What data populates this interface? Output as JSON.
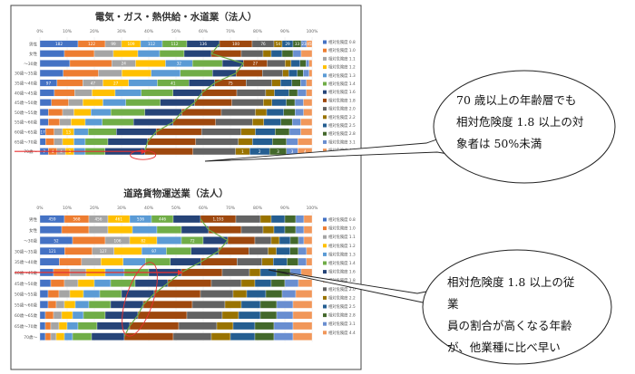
{
  "colors": {
    "c0.8": "#4472c4",
    "c1.0": "#ed7d31",
    "c1.1": "#a5a5a5",
    "c1.2": "#ffc000",
    "c1.3": "#5b9bd5",
    "c1.4": "#70ad47",
    "c1.6": "#264478",
    "c1.8": "#9e480e",
    "c2.0": "#636363",
    "c2.2": "#997300",
    "c2.5": "#255e91",
    "c2.8": "#43682b",
    "c3.1": "#698ed0",
    "c4.4": "#f1975a",
    "curve": "#70ad47",
    "pointer": "#e83030"
  },
  "callouts": [
    {
      "lines": [
        "70 歳以上の年齢層でも",
        "相対危険度 1.8 以上の対",
        "象者は 50%未満"
      ]
    },
    {
      "lines": [
        "相対危険度 1.8 以上の従業",
        "員の割合が高くなる年齢",
        "が、他業種に比べ早い"
      ]
    }
  ],
  "chart_data": [
    {
      "type": "bar",
      "stacked": "percent",
      "orientation": "horizontal",
      "title": "電気・ガス・熱供給・水道業（法人）",
      "x_ticks": [
        "0%",
        "10%",
        "20%",
        "30%",
        "40%",
        "50%",
        "60%",
        "70%",
        "80%",
        "90%",
        "100%"
      ],
      "categories": [
        "男性",
        "女性",
        "～30歳",
        "30歳～35歳",
        "35歳～40歳",
        "40歳～45歳",
        "45歳～50歳",
        "50歳～55歳",
        "55歳～60歳",
        "60歳～65歳",
        "65歳～70歳",
        "70歳～"
      ],
      "legend": [
        "相対危険度 0.8",
        "相対危険度 1.0",
        "相対危険度 1.1",
        "相対危険度 1.2",
        "相対危険度 1.3",
        "相対危険度 1.4",
        "相対危険度 1.6",
        "相対危険度 1.8",
        "相対危険度 2.0",
        "相対危険度 2.2",
        "相対危険度 2.5",
        "相対危険度 2.8",
        "相対危険度 3.1",
        "相対危険度 4.4"
      ],
      "series": [
        {
          "key": "c0.8",
          "values": [
            14,
            9,
            10,
            8,
            6,
            5,
            4,
            3,
            3,
            2,
            2,
            3
          ]
        },
        {
          "key": "c1.0",
          "values": [
            10,
            11,
            14,
            12,
            9,
            7,
            6,
            5,
            4,
            3,
            3,
            3
          ]
        },
        {
          "key": "c1.1",
          "values": [
            6,
            7,
            8,
            8,
            7,
            6,
            5,
            4,
            4,
            3,
            3,
            3
          ]
        },
        {
          "key": "c1.2",
          "values": [
            7,
            9,
            10,
            10,
            9,
            8,
            7,
            6,
            5,
            4,
            4,
            3
          ]
        },
        {
          "key": "c1.3",
          "values": [
            8,
            8,
            9,
            10,
            10,
            9,
            8,
            7,
            6,
            5,
            4,
            4
          ]
        },
        {
          "key": "c1.4",
          "values": [
            9,
            9,
            10,
            11,
            11,
            11,
            12,
            12,
            11,
            10,
            8,
            7
          ]
        },
        {
          "key": "c1.6",
          "values": [
            12,
            10,
            7,
            8,
            9,
            10,
            12,
            13,
            14,
            14,
            14,
            14
          ]
        },
        {
          "key": "c1.8",
          "values": [
            12,
            11,
            8,
            9,
            11,
            12,
            13,
            14,
            15,
            16,
            17,
            17
          ]
        },
        {
          "key": "c2.0",
          "values": [
            8,
            8,
            6,
            7,
            9,
            10,
            11,
            12,
            13,
            14,
            15,
            15
          ]
        },
        {
          "key": "c2.2",
          "values": [
            3,
            3,
            2,
            2,
            3,
            3,
            3,
            4,
            4,
            5,
            5,
            5
          ]
        },
        {
          "key": "c2.5",
          "values": [
            4,
            4,
            3,
            3,
            4,
            5,
            5,
            6,
            6,
            7,
            7,
            7
          ]
        },
        {
          "key": "c2.8",
          "values": [
            3,
            4,
            2,
            2,
            3,
            3,
            3,
            4,
            4,
            5,
            5,
            6
          ]
        },
        {
          "key": "c3.1",
          "values": [
            2,
            3,
            1,
            2,
            2,
            3,
            3,
            3,
            3,
            4,
            4,
            4
          ]
        },
        {
          "key": "c4.4",
          "values": [
            2,
            4,
            1,
            1,
            2,
            2,
            3,
            3,
            4,
            4,
            5,
            5
          ]
        }
      ],
      "labels": [
        [
          "182",
          "122",
          "99",
          "109",
          "112",
          "112",
          "136",
          "100",
          "76",
          "54",
          "29",
          "33",
          "23",
          "45"
        ],
        [
          "",
          "",
          "",
          "",
          "",
          "",
          "",
          "",
          "",
          "",
          "",
          "",
          "",
          ""
        ],
        [
          "",
          "",
          "24",
          "",
          "32",
          "",
          "",
          "27",
          "",
          "",
          "",
          "",
          "",
          ""
        ],
        [
          "",
          "",
          "",
          "",
          "",
          "",
          "",
          "",
          "",
          "",
          "",
          "",
          "",
          ""
        ],
        [
          "97",
          "",
          "47",
          "27",
          "",
          "41",
          "",
          "75",
          "",
          "",
          "",
          "",
          "",
          ""
        ],
        [
          "",
          "",
          "",
          "",
          "",
          "",
          "",
          "",
          "",
          "",
          "",
          "",
          "",
          ""
        ],
        [
          "",
          "",
          "",
          "",
          "",
          "",
          "",
          "",
          "",
          "",
          "",
          "",
          "",
          ""
        ],
        [
          "",
          "",
          "",
          "",
          "",
          "",
          "",
          "",
          "",
          "",
          "",
          "",
          "",
          ""
        ],
        [
          "",
          "",
          "",
          "",
          "",
          "",
          "",
          "",
          "",
          "",
          "",
          "",
          "",
          ""
        ],
        [
          "17",
          "",
          "",
          "13",
          "",
          "",
          "",
          "",
          "",
          "",
          "",
          "",
          "",
          ""
        ],
        [
          "",
          "",
          "",
          "",
          "",
          "",
          "",
          "",
          "",
          "",
          "",
          "",
          "",
          ""
        ],
        [
          "7",
          "4",
          "4",
          "3",
          "",
          "",
          "",
          "",
          "",
          "1",
          "2",
          "3",
          "3",
          "4"
        ]
      ],
      "threshold_line_row": 11
    },
    {
      "type": "bar",
      "stacked": "percent",
      "orientation": "horizontal",
      "title": "道路貨物運送業（法人）",
      "x_ticks": [
        "0%",
        "10%",
        "20%",
        "30%",
        "40%",
        "50%",
        "60%",
        "70%",
        "80%",
        "90%",
        "100%"
      ],
      "categories": [
        "男性",
        "女性",
        "～30歳",
        "30歳～35歳",
        "35歳～40歳",
        "40歳～45歳",
        "45歳～50歳",
        "50歳～55歳",
        "55歳～60歳",
        "60歳～65歳",
        "65歳～70歳",
        "70歳～"
      ],
      "legend": [
        "相対危険度 0.8",
        "相対危険度 1.0",
        "相対危険度 1.1",
        "相対危険度 1.2",
        "相対危険度 1.3",
        "相対危険度 1.4",
        "相対危険度 1.6",
        "相対危険度 1.8",
        "相対危険度 2.0",
        "相対危険度 2.2",
        "相対危険度 2.5",
        "相対危険度 2.8",
        "相対危険度 3.1",
        "相対危険度 4.4"
      ],
      "series": [
        {
          "key": "c0.8",
          "values": [
            9,
            8,
            12,
            9,
            7,
            5,
            4,
            3,
            3,
            2,
            2,
            2
          ]
        },
        {
          "key": "c1.0",
          "values": [
            9,
            10,
            12,
            10,
            8,
            6,
            5,
            4,
            3,
            3,
            2,
            2
          ]
        },
        {
          "key": "c1.1",
          "values": [
            7,
            7,
            9,
            8,
            7,
            6,
            5,
            4,
            3,
            3,
            3,
            2
          ]
        },
        {
          "key": "c1.2",
          "values": [
            8,
            9,
            10,
            10,
            8,
            7,
            6,
            5,
            4,
            4,
            3,
            3
          ]
        },
        {
          "key": "c1.3",
          "values": [
            8,
            9,
            9,
            9,
            8,
            7,
            6,
            6,
            5,
            4,
            4,
            3
          ]
        },
        {
          "key": "c1.4",
          "values": [
            8,
            9,
            8,
            9,
            9,
            9,
            9,
            8,
            8,
            8,
            7,
            7
          ]
        },
        {
          "key": "c1.6",
          "values": [
            10,
            10,
            9,
            10,
            11,
            12,
            12,
            12,
            12,
            12,
            12,
            12
          ]
        },
        {
          "key": "c1.8",
          "values": [
            13,
            12,
            10,
            11,
            13,
            15,
            16,
            17,
            18,
            18,
            18,
            18
          ]
        },
        {
          "key": "c2.0",
          "values": [
            9,
            8,
            6,
            7,
            9,
            10,
            11,
            12,
            12,
            13,
            14,
            14
          ]
        },
        {
          "key": "c2.2",
          "values": [
            4,
            4,
            3,
            3,
            4,
            4,
            5,
            5,
            6,
            6,
            6,
            7
          ]
        },
        {
          "key": "c2.5",
          "values": [
            5,
            4,
            4,
            5,
            5,
            6,
            6,
            7,
            7,
            8,
            8,
            9
          ]
        },
        {
          "key": "c2.8",
          "values": [
            4,
            4,
            3,
            3,
            4,
            5,
            5,
            6,
            6,
            6,
            7,
            7
          ]
        },
        {
          "key": "c3.1",
          "values": [
            3,
            3,
            2,
            3,
            3,
            4,
            5,
            5,
            6,
            6,
            7,
            7
          ]
        },
        {
          "key": "c4.4",
          "values": [
            3,
            3,
            3,
            2,
            2,
            4,
            5,
            6,
            7,
            7,
            7,
            7
          ]
        }
      ],
      "labels": [
        [
          "459",
          "568",
          "456",
          "461",
          "536",
          "446",
          "",
          "1,193",
          "",
          "",
          "",
          "",
          "",
          ""
        ],
        [
          "",
          "",
          "",
          "",
          "",
          "",
          "",
          "",
          "",
          "",
          "",
          "",
          "",
          ""
        ],
        [
          "52",
          "",
          "106",
          "82",
          "",
          "72",
          "",
          "",
          "",
          "",
          "",
          "",
          "",
          ""
        ],
        [
          "121",
          "",
          "127",
          "",
          "97",
          "",
          "",
          "",
          "",
          "",
          "",
          "",
          "",
          ""
        ],
        [
          "",
          "",
          "",
          "",
          "",
          "",
          "",
          "",
          "",
          "",
          "",
          "",
          "",
          ""
        ],
        [
          "",
          "",
          "",
          "",
          "",
          "",
          "",
          "",
          "",
          "",
          "",
          "",
          "",
          ""
        ],
        [
          "",
          "",
          "",
          "",
          "",
          "",
          "",
          "",
          "",
          "",
          "",
          "",
          "",
          ""
        ],
        [
          "",
          "",
          "",
          "",
          "",
          "",
          "",
          "",
          "",
          "",
          "",
          "",
          "",
          ""
        ],
        [
          "",
          "",
          "",
          "",
          "",
          "",
          "",
          "",
          "",
          "",
          "",
          "",
          "",
          ""
        ],
        [
          "",
          "",
          "",
          "",
          "",
          "",
          "",
          "",
          "",
          "",
          "",
          "",
          "",
          ""
        ],
        [
          "",
          "",
          "",
          "",
          "",
          "",
          "",
          "",
          "",
          "",
          "",
          "",
          "",
          ""
        ],
        [
          "",
          "",
          "",
          "",
          "",
          "",
          "",
          "",
          "",
          "",
          "",
          "",
          "",
          ""
        ]
      ],
      "threshold_line_row": 5
    }
  ]
}
